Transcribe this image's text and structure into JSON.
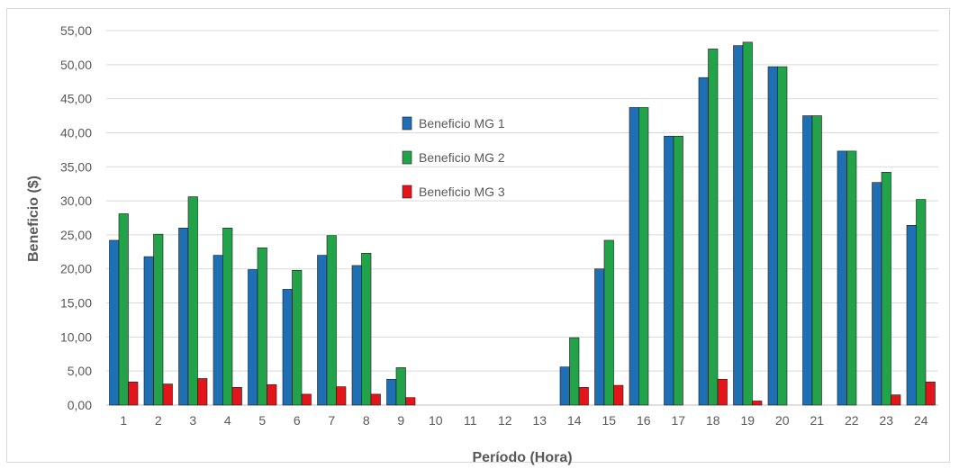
{
  "chart_data": {
    "type": "bar",
    "xlabel": "Período (Hora)",
    "ylabel": "Beneficio ($)",
    "ylim": [
      0,
      55
    ],
    "ytick_step": 5,
    "ytick_labels": [
      "0,00",
      "5,00",
      "10,00",
      "15,00",
      "20,00",
      "25,00",
      "30,00",
      "35,00",
      "40,00",
      "45,00",
      "50,00",
      "55,00"
    ],
    "grid": true,
    "legend_position": "center-left",
    "categories": [
      "1",
      "2",
      "3",
      "4",
      "5",
      "6",
      "7",
      "8",
      "9",
      "10",
      "11",
      "12",
      "13",
      "14",
      "15",
      "16",
      "17",
      "18",
      "19",
      "20",
      "21",
      "22",
      "23",
      "24"
    ],
    "series": [
      {
        "name": "Beneficio MG 1",
        "color": "#1f6fb4",
        "values": [
          24.2,
          21.8,
          26.0,
          22.0,
          19.9,
          17.0,
          22.0,
          20.5,
          3.8,
          0,
          0,
          0,
          0,
          5.6,
          20.0,
          43.7,
          39.5,
          48.1,
          52.8,
          49.7,
          42.5,
          37.3,
          32.7,
          26.4
        ]
      },
      {
        "name": "Beneficio MG 2",
        "color": "#22a34a",
        "values": [
          28.1,
          25.1,
          30.6,
          26.0,
          23.1,
          19.8,
          24.9,
          22.3,
          5.5,
          0,
          0,
          0,
          0,
          9.9,
          24.2,
          43.7,
          39.5,
          52.3,
          53.3,
          49.7,
          42.5,
          37.3,
          34.2,
          30.2
        ]
      },
      {
        "name": "Beneficio MG 3",
        "color": "#e3151a",
        "values": [
          3.4,
          3.1,
          3.9,
          2.6,
          3.0,
          1.6,
          2.7,
          1.6,
          1.1,
          0,
          0,
          0,
          0,
          2.6,
          2.9,
          0,
          0,
          3.8,
          0.6,
          0,
          0,
          0,
          1.5,
          3.4
        ]
      }
    ]
  }
}
